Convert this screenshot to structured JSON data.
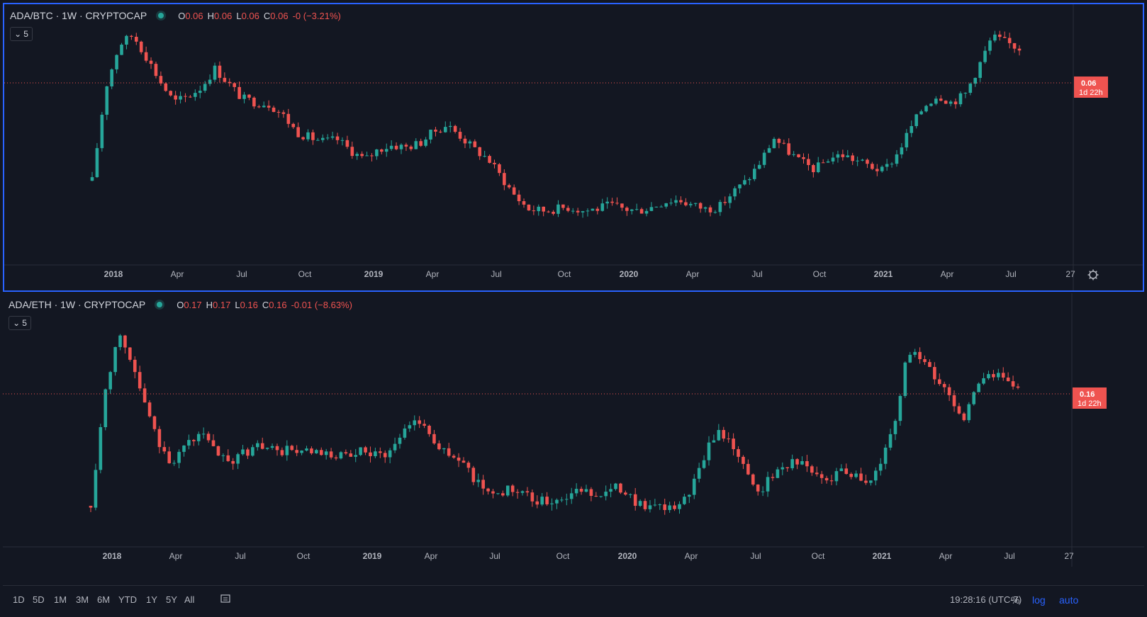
{
  "panes": [
    {
      "symbol": "ADA/BTC · 1W · CRYPTOCAP",
      "ohlc": {
        "o": "0.06",
        "h": "0.06",
        "l": "0.06",
        "c": "0.06",
        "chg": "-0 (−3.21%)"
      },
      "indicator_count": "5",
      "price_label": "0.06",
      "countdown": "1d 22h"
    },
    {
      "symbol": "ADA/ETH · 1W · CRYPTOCAP",
      "ohlc": {
        "o": "0.17",
        "h": "0.17",
        "l": "0.16",
        "c": "0.16",
        "chg": "-0.01 (−8.63%)"
      },
      "indicator_count": "5",
      "price_label": "0.16",
      "countdown": "1d 22h"
    }
  ],
  "labels": {
    "o": "O",
    "h": "H",
    "l": "L",
    "c": "C"
  },
  "chart_data": [
    {
      "type": "candlestick",
      "title": "ADA/BTC · 1W · CRYPTOCAP",
      "x_ticks": [
        "2018",
        "Apr",
        "Jul",
        "Oct",
        "2019",
        "Apr",
        "Jul",
        "Oct",
        "2020",
        "Apr",
        "Jul",
        "Oct",
        "2021",
        "Apr",
        "Jul",
        "27"
      ],
      "last_price": "0.06",
      "ylim": [
        0,
        1
      ],
      "close_trend": [
        0.2,
        0.7,
        0.93,
        0.98,
        0.86,
        0.73,
        0.62,
        0.65,
        0.7,
        0.8,
        0.72,
        0.64,
        0.62,
        0.61,
        0.55,
        0.46,
        0.43,
        0.41,
        0.42,
        0.36,
        0.31,
        0.37,
        0.39,
        0.38,
        0.4,
        0.46,
        0.5,
        0.44,
        0.37,
        0.32,
        0.22,
        0.12,
        0.05,
        0.04,
        0.05,
        0.06,
        0.04,
        0.05,
        0.07,
        0.05,
        0.04,
        0.06,
        0.09,
        0.1,
        0.07,
        0.05,
        0.06,
        0.14,
        0.2,
        0.3,
        0.43,
        0.36,
        0.3,
        0.26,
        0.32,
        0.34,
        0.31,
        0.28,
        0.25,
        0.34,
        0.48,
        0.6,
        0.66,
        0.62,
        0.66,
        0.81,
        0.97,
        0.94,
        0.91
      ]
    },
    {
      "type": "candlestick",
      "title": "ADA/ETH · 1W · CRYPTOCAP",
      "x_ticks": [
        "2018",
        "Apr",
        "Jul",
        "Oct",
        "2019",
        "Apr",
        "Jul",
        "Oct",
        "2020",
        "Apr",
        "Jul",
        "Oct",
        "2021",
        "Apr",
        "Jul",
        "27"
      ],
      "last_price": "0.16",
      "ylim": [
        0,
        1
      ],
      "close_trend": [
        0.1,
        0.62,
        0.92,
        0.78,
        0.56,
        0.4,
        0.3,
        0.38,
        0.45,
        0.36,
        0.3,
        0.34,
        0.38,
        0.37,
        0.36,
        0.36,
        0.35,
        0.33,
        0.34,
        0.32,
        0.36,
        0.34,
        0.36,
        0.46,
        0.52,
        0.42,
        0.35,
        0.31,
        0.24,
        0.17,
        0.16,
        0.18,
        0.14,
        0.12,
        0.13,
        0.15,
        0.17,
        0.16,
        0.17,
        0.19,
        0.12,
        0.09,
        0.08,
        0.1,
        0.17,
        0.33,
        0.46,
        0.4,
        0.26,
        0.17,
        0.24,
        0.3,
        0.31,
        0.25,
        0.22,
        0.28,
        0.25,
        0.21,
        0.3,
        0.52,
        0.84,
        0.78,
        0.7,
        0.62,
        0.5,
        0.68,
        0.7,
        0.72,
        0.66
      ]
    }
  ],
  "range_buttons": [
    "1D",
    "5D",
    "1M",
    "3M",
    "6M",
    "YTD",
    "1Y",
    "5Y",
    "All"
  ],
  "clock": "19:28:16 (UTC-7)",
  "options": {
    "percent": "%",
    "log": "log",
    "auto": "auto"
  },
  "colors": {
    "up": "#26a69a",
    "down": "#ef5350",
    "bg": "#131722",
    "grid": "#2a2e39",
    "active_border": "#2962ff",
    "accent": "#2962ff"
  }
}
